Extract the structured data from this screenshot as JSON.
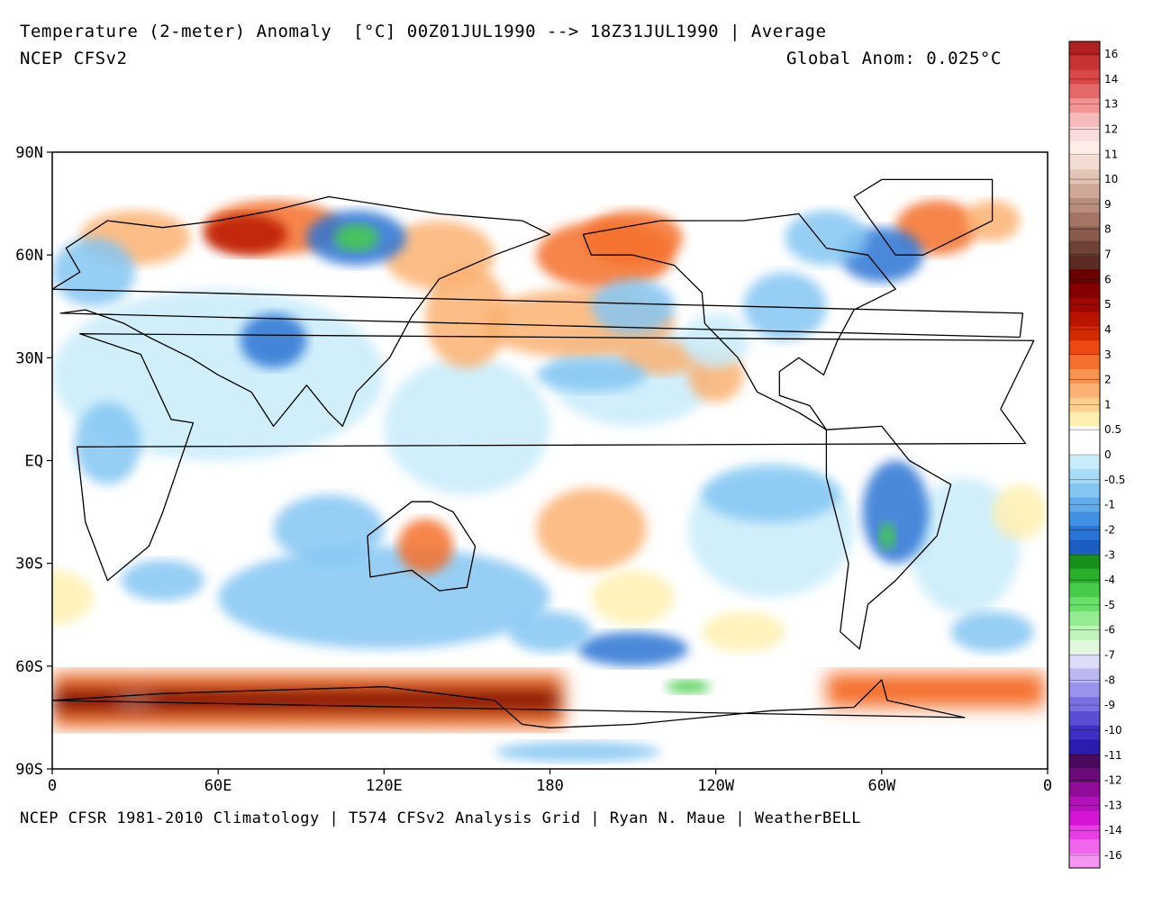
{
  "header": {
    "title": "Temperature (2-meter) Anomaly  [°C] 00Z01JUL1990 --> 18Z31JUL1990 | Average",
    "model": "NCEP CFSv2",
    "global_anom": "Global Anom: 0.025°C"
  },
  "footer": {
    "credits": "NCEP CFSR 1981-2010 Climatology | T574 CFSv2 Analysis Grid | Ryan N. Maue | WeatherBELL"
  },
  "axes": {
    "lat_labels": [
      "90N",
      "60N",
      "30N",
      "EQ",
      "30S",
      "60S",
      "90S"
    ],
    "lon_labels": [
      "0",
      "60E",
      "120E",
      "180",
      "120W",
      "60W",
      "0"
    ]
  },
  "colorbar": {
    "labels": [
      "16",
      "14",
      "13",
      "12",
      "11",
      "10",
      "9",
      "8",
      "7",
      "6",
      "5",
      "4",
      "3",
      "2",
      "1",
      "0.5",
      "0",
      "-0.5",
      "-1",
      "-2",
      "-3",
      "-4",
      "-5",
      "-6",
      "-7",
      "-8",
      "-9",
      "-10",
      "-11",
      "-12",
      "-13",
      "-14",
      "-16"
    ],
    "colors": [
      "#b02020",
      "#c83232",
      "#d84848",
      "#e46a6a",
      "#f09494",
      "#f6bcbc",
      "#fadcdc",
      "#fceee6",
      "#f2dcd2",
      "#e2c4b6",
      "#cfa898",
      "#ba8e7e",
      "#a47464",
      "#8a5a4c",
      "#6e4236",
      "#5a2c24",
      "#6a0000",
      "#840000",
      "#9e0800",
      "#b81400",
      "#d42a00",
      "#ec4810",
      "#f4702c",
      "#f89250",
      "#fcb272",
      "#fed090",
      "#fff0b0",
      "#ffffff",
      "#ffffff",
      "#c8ecfa",
      "#a6dcf6",
      "#84c6f2",
      "#62acec",
      "#4290e2",
      "#2874d4",
      "#1a5ec4",
      "#18901c",
      "#2aae2c",
      "#46cc48",
      "#6ae06a",
      "#94ec90",
      "#bef4b8",
      "#e2f8de",
      "#dcdcf8",
      "#bcb8f2",
      "#9a94ea",
      "#7a70e0",
      "#5a4ed4",
      "#3e30c4",
      "#2a1cae",
      "#4a0a5e",
      "#6c0a7a",
      "#920c9a",
      "#b410ba",
      "#d414d4",
      "#ea3ce6",
      "#f066ec",
      "#f694f2"
    ]
  },
  "map_colors": {
    "warm_strong": "#b81400",
    "warm": "#f4702c",
    "warm_light": "#fcb272",
    "warm_pale": "#fff0b0",
    "cool_pale": "#c8ecfa",
    "cool": "#84c6f2",
    "cool_strong": "#2874d4",
    "green": "#46cc48",
    "dark_red": "#840000",
    "grey_brown": "#a47464"
  }
}
